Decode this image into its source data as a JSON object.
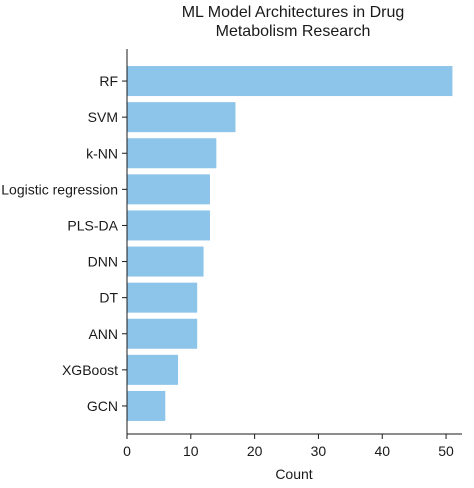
{
  "chart_data": {
    "type": "bar",
    "orientation": "horizontal",
    "title_lines": [
      "ML Model Architectures in Drug",
      "Metabolism Research"
    ],
    "xlabel": "Count",
    "ylabel": "",
    "categories": [
      "RF",
      "SVM",
      "k-NN",
      "Logistic regression",
      "PLS-DA",
      "DNN",
      "DT",
      "ANN",
      "XGBoost",
      "GCN"
    ],
    "values": [
      51,
      17,
      14,
      13,
      13,
      12,
      11,
      11,
      8,
      6
    ],
    "xlim": [
      0,
      52.5
    ],
    "xticks": [
      0,
      10,
      20,
      30,
      40,
      50
    ],
    "grid": false,
    "bar_color": "#8dc4ea"
  }
}
